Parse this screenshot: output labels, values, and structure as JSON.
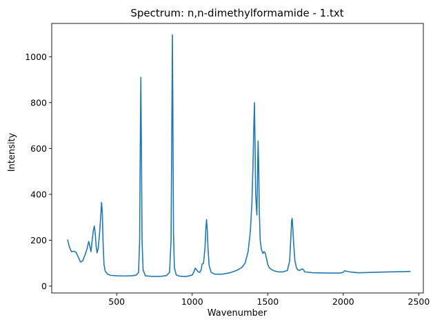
{
  "chart_data": {
    "type": "line",
    "title": "Spectrum: n,n-dimethylformamide - 1.txt",
    "xlabel": "Wavenumber",
    "ylabel": "Intensity",
    "xlim": [
      70,
      2530
    ],
    "ylim": [
      -30,
      1145
    ],
    "xticks": [
      500,
      1000,
      1500,
      2000,
      2500
    ],
    "yticks": [
      0,
      200,
      400,
      600,
      800,
      1000
    ],
    "grid": false,
    "line_color": "#1f77b4",
    "series": [
      {
        "x": [
          175,
          185,
          200,
          215,
          230,
          245,
          260,
          275,
          290,
          305,
          315,
          322,
          330,
          338,
          345,
          352,
          358,
          364,
          370,
          378,
          386,
          394,
          400,
          405,
          410,
          416,
          424,
          440,
          460,
          500,
          550,
          600,
          630,
          645,
          652,
          656,
          660,
          664,
          668,
          675,
          690,
          720,
          760,
          800,
          830,
          850,
          860,
          866,
          869,
          872,
          876,
          882,
          895,
          920,
          960,
          1000,
          1010,
          1020,
          1030,
          1040,
          1050,
          1060,
          1065,
          1075,
          1085,
          1090,
          1095,
          1100,
          1105,
          1112,
          1125,
          1150,
          1200,
          1250,
          1300,
          1330,
          1350,
          1370,
          1385,
          1395,
          1402,
          1408,
          1412,
          1416,
          1420,
          1425,
          1428,
          1432,
          1436,
          1440,
          1444,
          1450,
          1458,
          1468,
          1475,
          1480,
          1485,
          1492,
          1500,
          1510,
          1525,
          1545,
          1570,
          1600,
          1630,
          1645,
          1652,
          1658,
          1662,
          1667,
          1672,
          1680,
          1690,
          1700,
          1710,
          1720,
          1728,
          1735,
          1745,
          1800,
          1900,
          1980,
          2000,
          2010,
          2020,
          2040,
          2100,
          2200,
          2300,
          2400,
          2445
        ],
        "y": [
          203,
          175,
          150,
          152,
          148,
          128,
          105,
          110,
          135,
          165,
          195,
          175,
          150,
          200,
          240,
          262,
          230,
          175,
          145,
          165,
          225,
          300,
          365,
          320,
          190,
          95,
          65,
          52,
          47,
          45,
          44,
          45,
          48,
          60,
          200,
          600,
          910,
          580,
          200,
          70,
          45,
          43,
          42,
          43,
          46,
          60,
          200,
          800,
          1095,
          760,
          240,
          80,
          48,
          43,
          42,
          48,
          60,
          78,
          70,
          62,
          60,
          72,
          95,
          100,
          170,
          250,
          290,
          240,
          160,
          90,
          60,
          52,
          52,
          58,
          70,
          82,
          100,
          150,
          240,
          360,
          520,
          700,
          800,
          620,
          400,
          340,
          310,
          450,
          632,
          540,
          330,
          200,
          160,
          142,
          150,
          148,
          140,
          120,
          95,
          80,
          72,
          66,
          62,
          62,
          68,
          110,
          200,
          285,
          295,
          240,
          180,
          110,
          80,
          70,
          68,
          72,
          75,
          72,
          62,
          58,
          57,
          57,
          60,
          67,
          65,
          62,
          58,
          60,
          62,
          63,
          64
        ]
      }
    ]
  }
}
